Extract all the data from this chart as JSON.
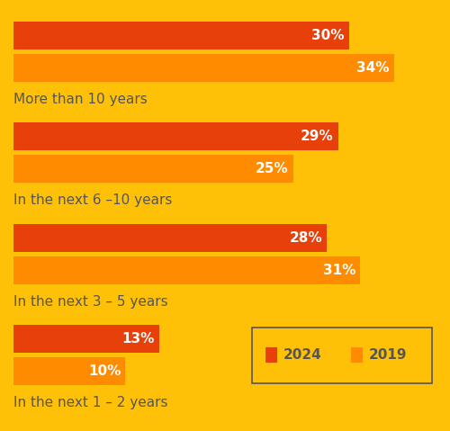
{
  "background_color": "#FFC107",
  "bar_color_2024": "#E8400A",
  "bar_color_2019": "#FF8C00",
  "category_labels": [
    "More than 10 years",
    "In the next 6 –10 years",
    "In the next 3 – 5 years",
    "In the next 1 – 2 years"
  ],
  "values_2024": [
    30,
    29,
    28,
    13
  ],
  "values_2019": [
    34,
    25,
    31,
    10
  ],
  "label_color": "#FFFFFF",
  "category_label_color": "#555555",
  "label_fontsize": 11,
  "category_fontsize": 11,
  "legend_box_color": "#FFC107",
  "legend_border_color": "#555555",
  "xlim": [
    0,
    37
  ]
}
